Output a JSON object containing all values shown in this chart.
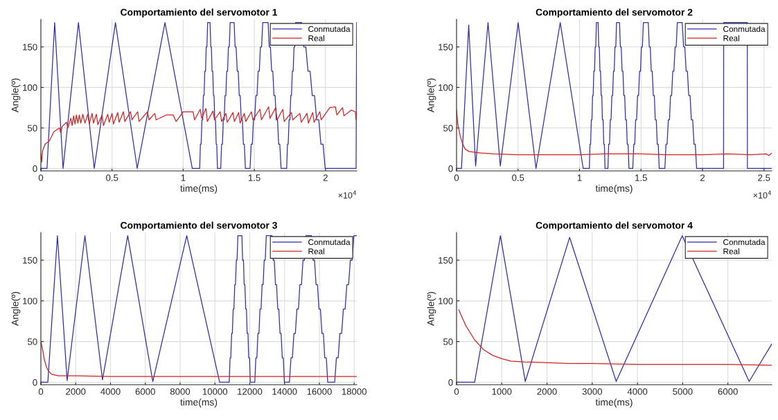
{
  "chart_data": [
    {
      "type": "line",
      "title": "Comportamiento del servomotor 1",
      "xlabel": "time(ms)",
      "ylabel": "Angle(º)",
      "xlim": [
        0,
        2.22
      ],
      "ylim": [
        -3,
        184
      ],
      "xticks": [
        0,
        0.5,
        1,
        1.5,
        2
      ],
      "yticks": [
        0,
        50,
        100,
        150
      ],
      "grid": true,
      "legend": "top right",
      "annotations": [
        "×10$^{4}$"
      ],
      "series": [
        {
          "name": "Conmutada",
          "color": "#2e2eaa",
          "x": [
            0,
            0.043,
            0.097,
            0.156,
            0.264,
            0.375,
            0.524,
            0.677,
            0.872,
            1.064,
            1.116,
            1.121,
            1.126,
            1.132,
            1.137,
            1.142,
            1.147,
            1.152,
            1.157,
            1.162,
            1.167,
            1.172,
            1.189,
            1.194,
            1.198,
            1.203,
            1.208,
            1.213,
            1.217,
            1.222,
            1.227,
            1.232,
            1.236,
            1.241,
            1.264,
            1.27,
            1.276,
            1.282,
            1.288,
            1.294,
            1.3,
            1.306,
            1.312,
            1.318,
            1.324,
            1.33,
            1.358,
            1.365,
            1.372,
            1.38,
            1.387,
            1.394,
            1.401,
            1.408,
            1.416,
            1.423,
            1.43,
            1.437,
            1.47,
            1.478,
            1.486,
            1.494,
            1.502,
            1.511,
            1.519,
            1.527,
            1.535,
            1.543,
            1.551,
            1.559,
            1.597,
            1.605,
            1.613,
            1.622,
            1.63,
            1.638,
            1.646,
            1.654,
            1.663,
            1.671,
            1.679,
            1.688,
            1.727,
            1.733,
            1.738,
            1.744,
            1.75,
            1.756,
            1.761,
            1.767,
            1.773,
            1.779,
            1.784,
            1.79,
            1.832,
            1.847,
            1.862,
            1.877,
            1.892,
            1.907,
            1.923,
            1.938,
            1.953,
            1.968,
            1.983,
            1.998,
            2.215,
            2.219
          ],
          "values": [
            0,
            0,
            180,
            0,
            180,
            0,
            180,
            0,
            180,
            0,
            0,
            30,
            30,
            60,
            60,
            90,
            90,
            120,
            120,
            150,
            150,
            180,
            180,
            150,
            150,
            120,
            120,
            90,
            90,
            60,
            60,
            30,
            30,
            0,
            0,
            30,
            30,
            60,
            60,
            90,
            90,
            120,
            120,
            150,
            150,
            180,
            180,
            150,
            150,
            120,
            120,
            90,
            90,
            60,
            60,
            30,
            30,
            0,
            0,
            30,
            30,
            60,
            60,
            90,
            90,
            120,
            120,
            150,
            150,
            180,
            180,
            150,
            150,
            120,
            120,
            90,
            90,
            60,
            60,
            30,
            30,
            0,
            0,
            30,
            30,
            60,
            60,
            90,
            90,
            120,
            120,
            150,
            150,
            180,
            180,
            150,
            150,
            120,
            120,
            90,
            90,
            60,
            60,
            30,
            30,
            0,
            0,
            180
          ]
        },
        {
          "name": "Real",
          "color": "#d42020",
          "x": [
            0,
            0.006,
            0.012,
            0.03,
            0.06,
            0.09,
            0.13,
            0.14,
            0.15,
            0.18,
            0.19,
            0.21,
            0.22,
            0.23,
            0.24,
            0.25,
            0.26,
            0.27,
            0.28,
            0.295,
            0.31,
            0.33,
            0.34,
            0.36,
            0.37,
            0.39,
            0.4,
            0.43,
            0.44,
            0.47,
            0.48,
            0.5,
            0.51,
            0.54,
            0.55,
            0.58,
            0.59,
            0.63,
            0.64,
            0.68,
            0.69,
            0.75,
            0.76,
            0.8,
            0.81,
            0.88,
            0.93,
            0.95,
            1.0,
            1.07,
            1.08,
            1.12,
            1.13,
            1.16,
            1.17,
            1.21,
            1.22,
            1.26,
            1.27,
            1.3,
            1.31,
            1.35,
            1.36,
            1.39,
            1.4,
            1.43,
            1.44,
            1.48,
            1.49,
            1.54,
            1.55,
            1.6,
            1.61,
            1.65,
            1.66,
            1.7,
            1.71,
            1.76,
            1.77,
            1.82,
            1.83,
            1.87,
            1.88,
            1.91,
            1.92,
            1.96,
            1.97,
            2.03,
            2.07,
            2.08,
            2.12,
            2.13,
            2.18,
            2.21,
            2.215,
            2.219
          ],
          "values": [
            18,
            8,
            22,
            30,
            34,
            45,
            50,
            44,
            52,
            57,
            50,
            62,
            53,
            65,
            55,
            66,
            56,
            66,
            56,
            67,
            56,
            67,
            55,
            68,
            56,
            67,
            54,
            66,
            53,
            67,
            57,
            68,
            55,
            69,
            57,
            70,
            58,
            70,
            60,
            70,
            58,
            70,
            60,
            68,
            60,
            66,
            66,
            58,
            70,
            70,
            60,
            73,
            62,
            74,
            58,
            71,
            60,
            70,
            58,
            68,
            57,
            69,
            58,
            69,
            56,
            68,
            58,
            70,
            60,
            73,
            60,
            76,
            62,
            75,
            60,
            73,
            58,
            69,
            60,
            68,
            57,
            68,
            56,
            69,
            57,
            70,
            60,
            75,
            76,
            66,
            75,
            65,
            72,
            70,
            60,
            69
          ]
        }
      ]
    },
    {
      "type": "line",
      "title": "Comportamiento del servomotor 2",
      "xlabel": "time(ms)",
      "ylabel": "Angle(º)",
      "xlim": [
        0,
        2.563
      ],
      "ylim": [
        -3,
        184
      ],
      "xticks": [
        0,
        0.5,
        1,
        1.5,
        2,
        2.5
      ],
      "yticks": [
        0,
        50,
        100,
        150
      ],
      "grid": true,
      "legend": "top right",
      "annotations": [
        "×10$^{4}$"
      ],
      "series": [
        {
          "name": "Conmutada",
          "color": "#2e2eaa",
          "x": [
            0,
            0.04,
            0.099,
            0.155,
            0.256,
            0.356,
            0.501,
            0.646,
            0.843,
            1.03,
            1.08,
            1.085,
            1.09,
            1.096,
            1.101,
            1.106,
            1.111,
            1.116,
            1.122,
            1.127,
            1.132,
            1.137,
            1.151,
            1.156,
            1.161,
            1.166,
            1.171,
            1.176,
            1.181,
            1.186,
            1.192,
            1.197,
            1.202,
            1.207,
            1.231,
            1.237,
            1.244,
            1.25,
            1.256,
            1.263,
            1.269,
            1.276,
            1.282,
            1.288,
            1.295,
            1.301,
            1.325,
            1.332,
            1.339,
            1.346,
            1.353,
            1.36,
            1.367,
            1.374,
            1.381,
            1.388,
            1.395,
            1.402,
            1.433,
            1.441,
            1.449,
            1.456,
            1.464,
            1.472,
            1.48,
            1.488,
            1.496,
            1.503,
            1.511,
            1.519,
            1.559,
            1.567,
            1.575,
            1.583,
            1.591,
            1.6,
            1.608,
            1.616,
            1.624,
            1.632,
            1.64,
            1.648,
            1.694,
            1.703,
            1.712,
            1.722,
            1.731,
            1.74,
            1.749,
            1.758,
            1.767,
            1.777,
            1.786,
            1.795,
            1.835,
            1.846,
            1.856,
            1.867,
            1.877,
            1.888,
            1.899,
            1.909,
            1.92,
            1.931,
            1.941,
            1.952,
            2.171,
            2.172,
            2.364,
            2.365,
            2.563
          ],
          "values": [
            0,
            0,
            177,
            3,
            180,
            3,
            180,
            0,
            180,
            0,
            0,
            30,
            30,
            60,
            60,
            90,
            90,
            120,
            120,
            150,
            150,
            180,
            180,
            150,
            150,
            120,
            120,
            90,
            90,
            60,
            60,
            30,
            30,
            0,
            0,
            30,
            30,
            60,
            60,
            90,
            90,
            120,
            120,
            150,
            150,
            180,
            180,
            150,
            150,
            120,
            120,
            90,
            90,
            60,
            60,
            30,
            30,
            0,
            0,
            30,
            30,
            60,
            60,
            90,
            90,
            120,
            120,
            150,
            150,
            180,
            180,
            150,
            150,
            120,
            120,
            90,
            90,
            60,
            60,
            30,
            30,
            0,
            0,
            30,
            30,
            60,
            60,
            90,
            90,
            120,
            120,
            150,
            150,
            180,
            180,
            150,
            150,
            120,
            120,
            90,
            90,
            60,
            60,
            30,
            30,
            0,
            0,
            180,
            180,
            0,
            0
          ]
        },
        {
          "name": "Real",
          "color": "#d42020",
          "x": [
            0,
            0.01,
            0.03,
            0.05,
            0.07,
            0.1,
            0.15,
            0.2,
            0.3,
            0.5,
            0.7,
            1.0,
            1.2,
            1.5,
            1.7,
            2.0,
            2.2,
            2.4,
            2.52,
            2.54,
            2.563
          ],
          "values": [
            72,
            55,
            40,
            30,
            24,
            21,
            20,
            19,
            18,
            17,
            17,
            17,
            18,
            18,
            17,
            17,
            18,
            17,
            18,
            16,
            19
          ]
        }
      ]
    },
    {
      "type": "line",
      "title": "Comportamiento del servomotor 3",
      "xlabel": "time(ms)",
      "ylabel": "Angle(º)",
      "xlim": [
        0,
        18150
      ],
      "ylim": [
        -3,
        184
      ],
      "xticks": [
        0,
        2000,
        4000,
        6000,
        8000,
        10000,
        12000,
        14000,
        16000,
        18000
      ],
      "yticks": [
        0,
        50,
        100,
        150
      ],
      "grid": true,
      "legend": "top right",
      "series": [
        {
          "name": "Conmutada",
          "color": "#2e2eaa",
          "x": [
            0,
            400,
            950,
            1510,
            2530,
            3540,
            4990,
            6430,
            8380,
            10270,
            10820,
            10870,
            10910,
            10960,
            11000,
            11050,
            11090,
            11140,
            11180,
            11230,
            11270,
            11320,
            11550,
            11590,
            11640,
            11680,
            11720,
            11770,
            11810,
            11850,
            11900,
            11940,
            11990,
            12030,
            12290,
            12350,
            12410,
            12470,
            12530,
            12590,
            12650,
            12710,
            12770,
            12830,
            12890,
            12950,
            13280,
            13350,
            13410,
            13480,
            13540,
            13610,
            13670,
            13740,
            13800,
            13870,
            13930,
            13990,
            14280,
            14370,
            14450,
            14540,
            14620,
            14710,
            14800,
            14880,
            14970,
            15060,
            15140,
            15230,
            15550,
            15640,
            15720,
            15810,
            15890,
            15980,
            16060,
            16150,
            16230,
            16310,
            16400,
            16480,
            16880,
            16980,
            17080,
            17180,
            17280,
            17380,
            17480,
            17580,
            17680,
            17780,
            17880,
            17980,
            18150
          ],
          "values": [
            0,
            0,
            180,
            2,
            180,
            3,
            180,
            1,
            180,
            0,
            0,
            30,
            30,
            60,
            60,
            90,
            90,
            120,
            120,
            150,
            150,
            180,
            180,
            150,
            150,
            120,
            120,
            90,
            90,
            60,
            60,
            30,
            30,
            0,
            0,
            30,
            30,
            60,
            60,
            90,
            90,
            120,
            120,
            150,
            150,
            180,
            180,
            150,
            150,
            120,
            120,
            90,
            90,
            60,
            60,
            30,
            30,
            0,
            0,
            30,
            30,
            60,
            60,
            90,
            90,
            120,
            120,
            150,
            150,
            180,
            180,
            150,
            150,
            120,
            120,
            90,
            90,
            60,
            60,
            30,
            30,
            0,
            0,
            30,
            30,
            60,
            60,
            90,
            90,
            120,
            120,
            150,
            150,
            180,
            180
          ]
        },
        {
          "name": "Real",
          "color": "#d42020",
          "x": [
            0,
            100,
            200,
            300,
            400,
            600,
            800,
            1000,
            2000,
            4000,
            8000,
            10000,
            14000,
            18150
          ],
          "values": [
            50,
            40,
            28,
            20,
            15,
            10,
            9,
            8,
            8,
            7,
            7,
            7,
            7,
            7
          ]
        }
      ]
    },
    {
      "type": "line",
      "title": "Comportamiento del servomotor 4",
      "xlabel": "time(ms)",
      "ylabel": "Angle(º)",
      "xlim": [
        0,
        6970
      ],
      "ylim": [
        -3,
        184
      ],
      "xticks": [
        0,
        1000,
        2000,
        3000,
        4000,
        5000,
        6000
      ],
      "yticks": [
        0,
        50,
        100,
        150
      ],
      "grid": true,
      "legend": "top right",
      "series": [
        {
          "name": "Conmutada",
          "color": "#2e2eaa",
          "x": [
            0,
            400,
            970,
            1520,
            2500,
            3530,
            4990,
            6470,
            6970
          ],
          "values": [
            0,
            0,
            180,
            1,
            178,
            1,
            180,
            1,
            47
          ]
        },
        {
          "name": "Real",
          "color": "#d42020",
          "x": [
            50,
            200,
            400,
            600,
            800,
            1000,
            1200,
            1500,
            2000,
            2500,
            3000,
            4000,
            5000,
            6000,
            6970
          ],
          "values": [
            89,
            70,
            52,
            40,
            33,
            29,
            26,
            25,
            24,
            23,
            23,
            22,
            22,
            22,
            21
          ]
        }
      ]
    }
  ]
}
